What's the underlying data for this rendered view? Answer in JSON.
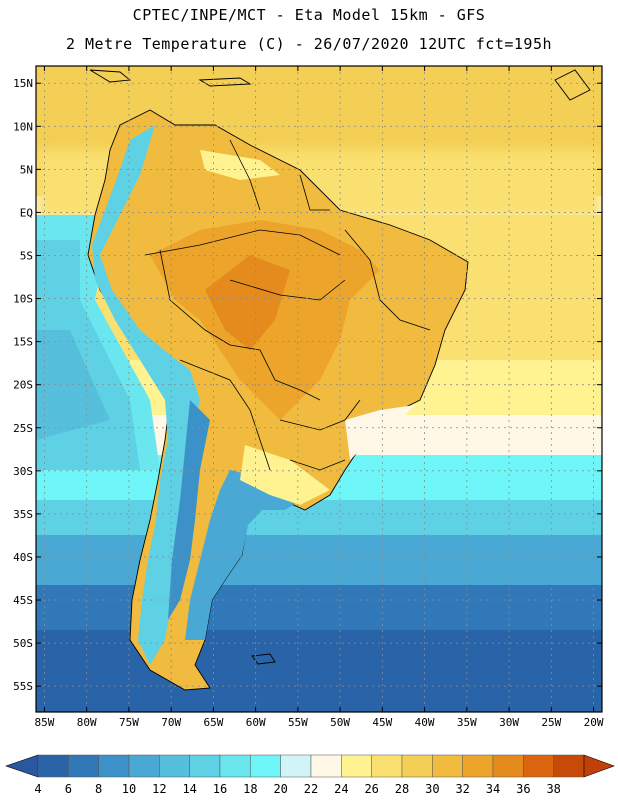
{
  "header": {
    "line1": "CPTEC/INPE/MCT -  Eta Model 15km - GFS",
    "line2": "2 Metre Temperature (C) - 26/07/2020 12UTC fct=195h"
  },
  "map": {
    "lon_range": [
      -86,
      -19
    ],
    "lat_range": [
      -58,
      17
    ],
    "lat_ticks": [
      "15N",
      "10N",
      "5N",
      "EQ",
      "5S",
      "10S",
      "15S",
      "20S",
      "25S",
      "30S",
      "35S",
      "40S",
      "45S",
      "50S",
      "55S"
    ],
    "lon_ticks": [
      "85W",
      "80W",
      "75W",
      "70W",
      "65W",
      "60W",
      "55W",
      "50W",
      "45W",
      "40W",
      "35W",
      "30W",
      "25W",
      "20W"
    ]
  },
  "colorbar": {
    "labels": [
      "4",
      "6",
      "8",
      "10",
      "12",
      "14",
      "16",
      "18",
      "20",
      "22",
      "24",
      "26",
      "28",
      "30",
      "32",
      "34",
      "36",
      "38"
    ],
    "colors": [
      "#2a64a8",
      "#3078b8",
      "#3c92c8",
      "#4aa8d4",
      "#56c0dc",
      "#5ed2e4",
      "#6ae6ee",
      "#6ff6f8",
      "#d2f4f8",
      "#fff8e6",
      "#fff290",
      "#f9e070",
      "#f4cf55",
      "#f0bb3e",
      "#eca52a",
      "#e58a1c",
      "#dc6610",
      "#c84a08"
    ],
    "low_color": "#2a58a0",
    "high_color": "#c04008"
  }
}
